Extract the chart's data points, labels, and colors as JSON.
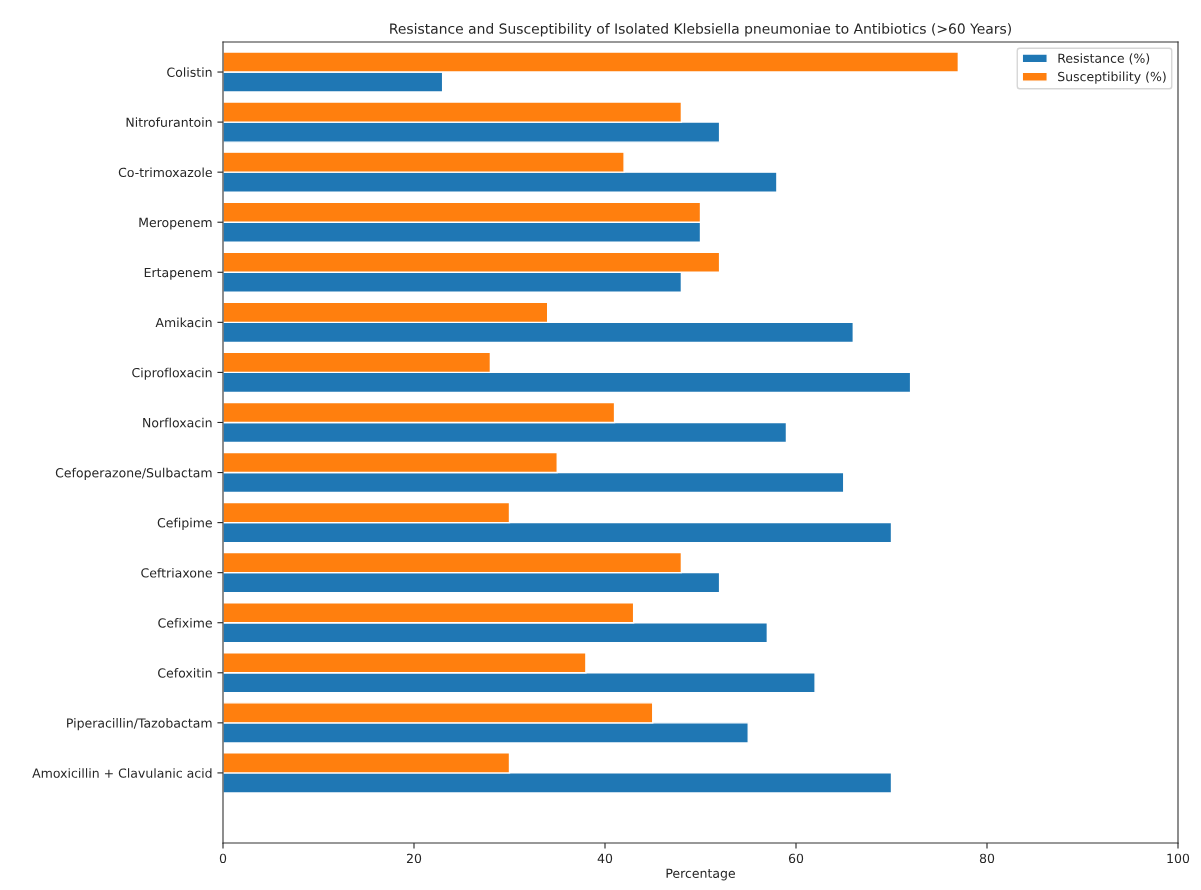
{
  "chart_data": {
    "type": "bar",
    "orientation": "horizontal",
    "title": "Resistance and Susceptibility of Isolated Klebsiella pneumoniae to Antibiotics (>60 Years)",
    "xlabel": "Percentage",
    "categories": [
      "Colistin",
      "Nitrofurantoin",
      "Co-trimoxazole",
      "Meropenem",
      "Ertapenem",
      "Amikacin",
      "Ciprofloxacin",
      "Norfloxacin",
      "Cefoperazone/Sulbactam",
      "Cefipime",
      "Ceftriaxone",
      "Cefixime",
      "Cefoxitin",
      "Piperacillin/Tazobactam",
      "Amoxicillin + Clavulanic acid"
    ],
    "series": [
      {
        "name": "Resistance (%)",
        "color": "#1f77b4",
        "values": [
          23,
          52,
          58,
          50,
          48,
          66,
          72,
          59,
          65,
          70,
          52,
          57,
          62,
          55,
          70
        ]
      },
      {
        "name": "Susceptibility (%)",
        "color": "#ff7f0e",
        "values": [
          77,
          48,
          42,
          50,
          52,
          34,
          28,
          41,
          35,
          30,
          48,
          43,
          38,
          45,
          30
        ]
      }
    ],
    "xlim": [
      0,
      100
    ],
    "xticks": [
      0,
      20,
      40,
      60,
      80,
      100
    ],
    "legend": "top right",
    "grid": false
  }
}
